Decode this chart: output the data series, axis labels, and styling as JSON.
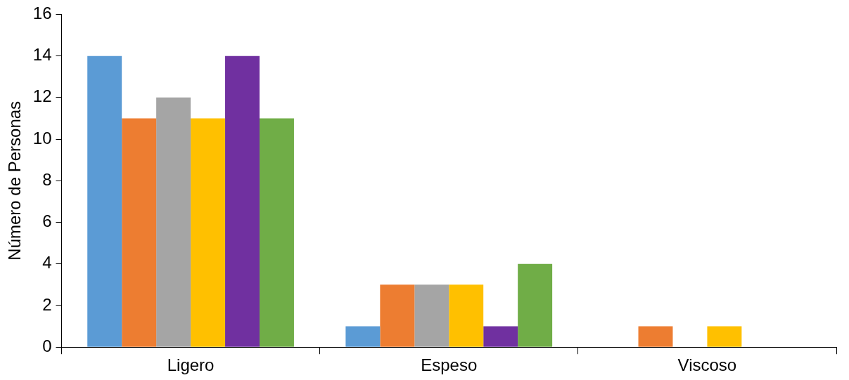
{
  "chart_data": {
    "type": "bar",
    "ylabel": "Número de Personas",
    "categories": [
      "Ligero",
      "Espeso",
      "Viscoso"
    ],
    "ylim": [
      0,
      16
    ],
    "yticks": [
      0,
      2,
      4,
      6,
      8,
      10,
      12,
      14,
      16
    ],
    "series": [
      {
        "color": "#5b9bd5",
        "values": [
          14,
          1,
          0
        ]
      },
      {
        "color": "#ed7d31",
        "values": [
          11,
          3,
          1
        ]
      },
      {
        "color": "#a5a5a5",
        "values": [
          12,
          3,
          0
        ]
      },
      {
        "color": "#ffc000",
        "values": [
          11,
          3,
          1
        ]
      },
      {
        "color": "#7030a0",
        "values": [
          14,
          1,
          0
        ]
      },
      {
        "color": "#70ad47",
        "values": [
          11,
          4,
          0
        ]
      }
    ]
  }
}
